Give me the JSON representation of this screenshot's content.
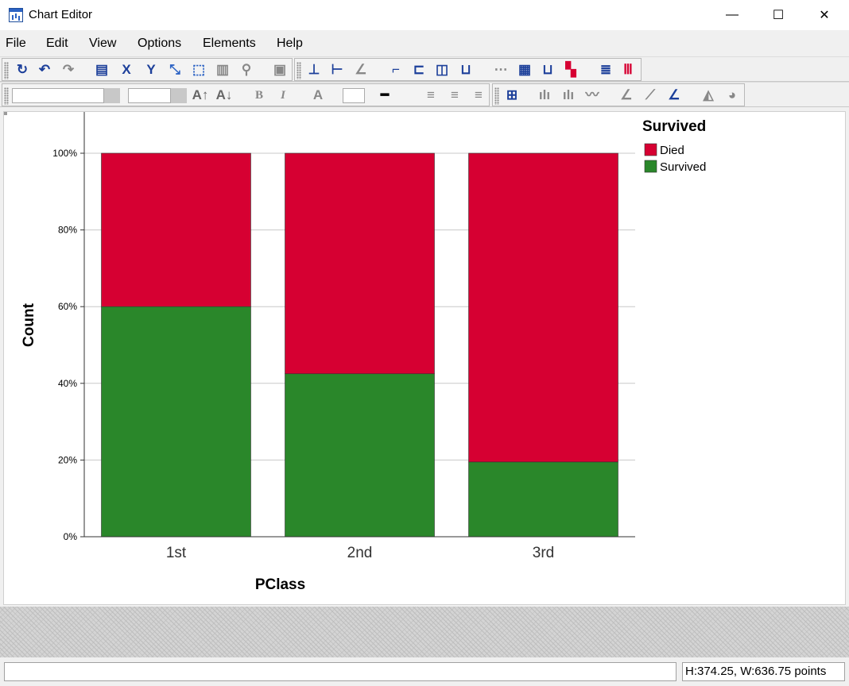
{
  "window": {
    "title": "Chart Editor",
    "minimize_glyph": "—",
    "maximize_glyph": "☐",
    "close_glyph": "✕"
  },
  "menu": {
    "items": [
      "File",
      "Edit",
      "View",
      "Options",
      "Elements",
      "Help"
    ]
  },
  "chart_data": {
    "type": "bar",
    "stacked": true,
    "percent": true,
    "categories": [
      "1st",
      "2nd",
      "3rd"
    ],
    "series": [
      {
        "name": "Survived",
        "color": "#2a872a",
        "values": [
          60,
          42.5,
          19.5
        ]
      },
      {
        "name": "Died",
        "color": "#d60032",
        "values": [
          40,
          57.5,
          80.5
        ]
      }
    ],
    "xlabel": "PClass",
    "ylabel": "Count",
    "ylim": [
      0,
      100
    ],
    "yticks": [
      "0%",
      "20%",
      "40%",
      "60%",
      "80%",
      "100%"
    ],
    "legend": {
      "title": "Survived",
      "entries": [
        "Died",
        "Survived"
      ],
      "placement": "top-right"
    },
    "grid": true
  },
  "status": {
    "left": "",
    "size": "H:374.25, W:636.75 points"
  }
}
